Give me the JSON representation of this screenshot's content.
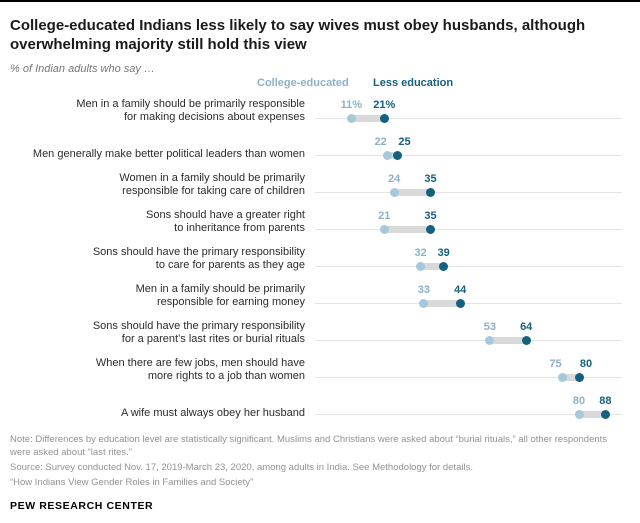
{
  "header": {
    "title": "College-educated Indians less likely to say wives must obey husbands, although overwhelming majority still hold this view",
    "subtitle": "% of Indian adults who say …"
  },
  "legend": {
    "college": "College-educated",
    "less": "Less education"
  },
  "colors": {
    "college_dot": "#a5c8dc",
    "college_text": "#8cb2c9",
    "less_dot": "#15607f",
    "less_text": "#15607f",
    "connector": "#d9d9d9",
    "track": "#e4e4e4"
  },
  "chart_data": {
    "type": "dumbbell",
    "xlim": [
      0,
      100
    ],
    "legend": [
      "College-educated",
      "Less education"
    ],
    "series_note": "values are % of Indian adults",
    "rows": [
      {
        "label": "Men in a family should be primarily responsible for making decisions about expenses",
        "label_lines": [
          "Men in a family should be primarily responsible",
          "for making decisions about expenses"
        ],
        "college": 11,
        "less": 21,
        "suffix": "%"
      },
      {
        "label": "Men generally make better political leaders than women",
        "label_lines": [
          "Men generally make better political leaders than women"
        ],
        "college": 22,
        "less": 25,
        "suffix": ""
      },
      {
        "label": "Women in a family should be primarily responsible for taking care of children",
        "label_lines": [
          "Women in a family should be primarily",
          "responsible for taking care of children"
        ],
        "college": 24,
        "less": 35,
        "suffix": ""
      },
      {
        "label": "Sons should have a greater right to inheritance from parents",
        "label_lines": [
          "Sons should have a greater right",
          "to inheritance from parents"
        ],
        "college": 21,
        "less": 35,
        "suffix": ""
      },
      {
        "label": "Sons should have the primary responsibility to care for parents as they age",
        "label_lines": [
          "Sons should have the primary responsibility",
          "to care for parents as they age"
        ],
        "college": 32,
        "less": 39,
        "suffix": ""
      },
      {
        "label": "Men in a family should be primarily responsible for earning money",
        "label_lines": [
          "Men in a family should be primarily",
          "responsible for earning money"
        ],
        "college": 33,
        "less": 44,
        "suffix": ""
      },
      {
        "label": "Sons should have the primary responsibility for a parent’s last rites or burial rituals",
        "label_lines": [
          "Sons should have the primary responsibility",
          "for a parent’s last rites or burial rituals"
        ],
        "college": 53,
        "less": 64,
        "suffix": ""
      },
      {
        "label": "When there are few jobs, men should have more rights to a job than women",
        "label_lines": [
          "When there are few jobs, men should have",
          "more rights to a job than women"
        ],
        "college": 75,
        "less": 80,
        "suffix": ""
      },
      {
        "label": "A wife must always obey her husband",
        "label_lines": [
          "A wife must always obey her husband"
        ],
        "college": 80,
        "less": 88,
        "suffix": ""
      }
    ]
  },
  "notes": [
    "Note: Differences by education level are statistically significant. Muslims and Christians were asked about “burial rituals,” all other respondents were asked about “last rites.”",
    "Source: Survey conducted Nov. 17, 2019-March 23, 2020, among adults in India. See Methodology for details.",
    "“How Indians View Gender Roles in Families and Society”"
  ],
  "footer": "PEW RESEARCH CENTER"
}
